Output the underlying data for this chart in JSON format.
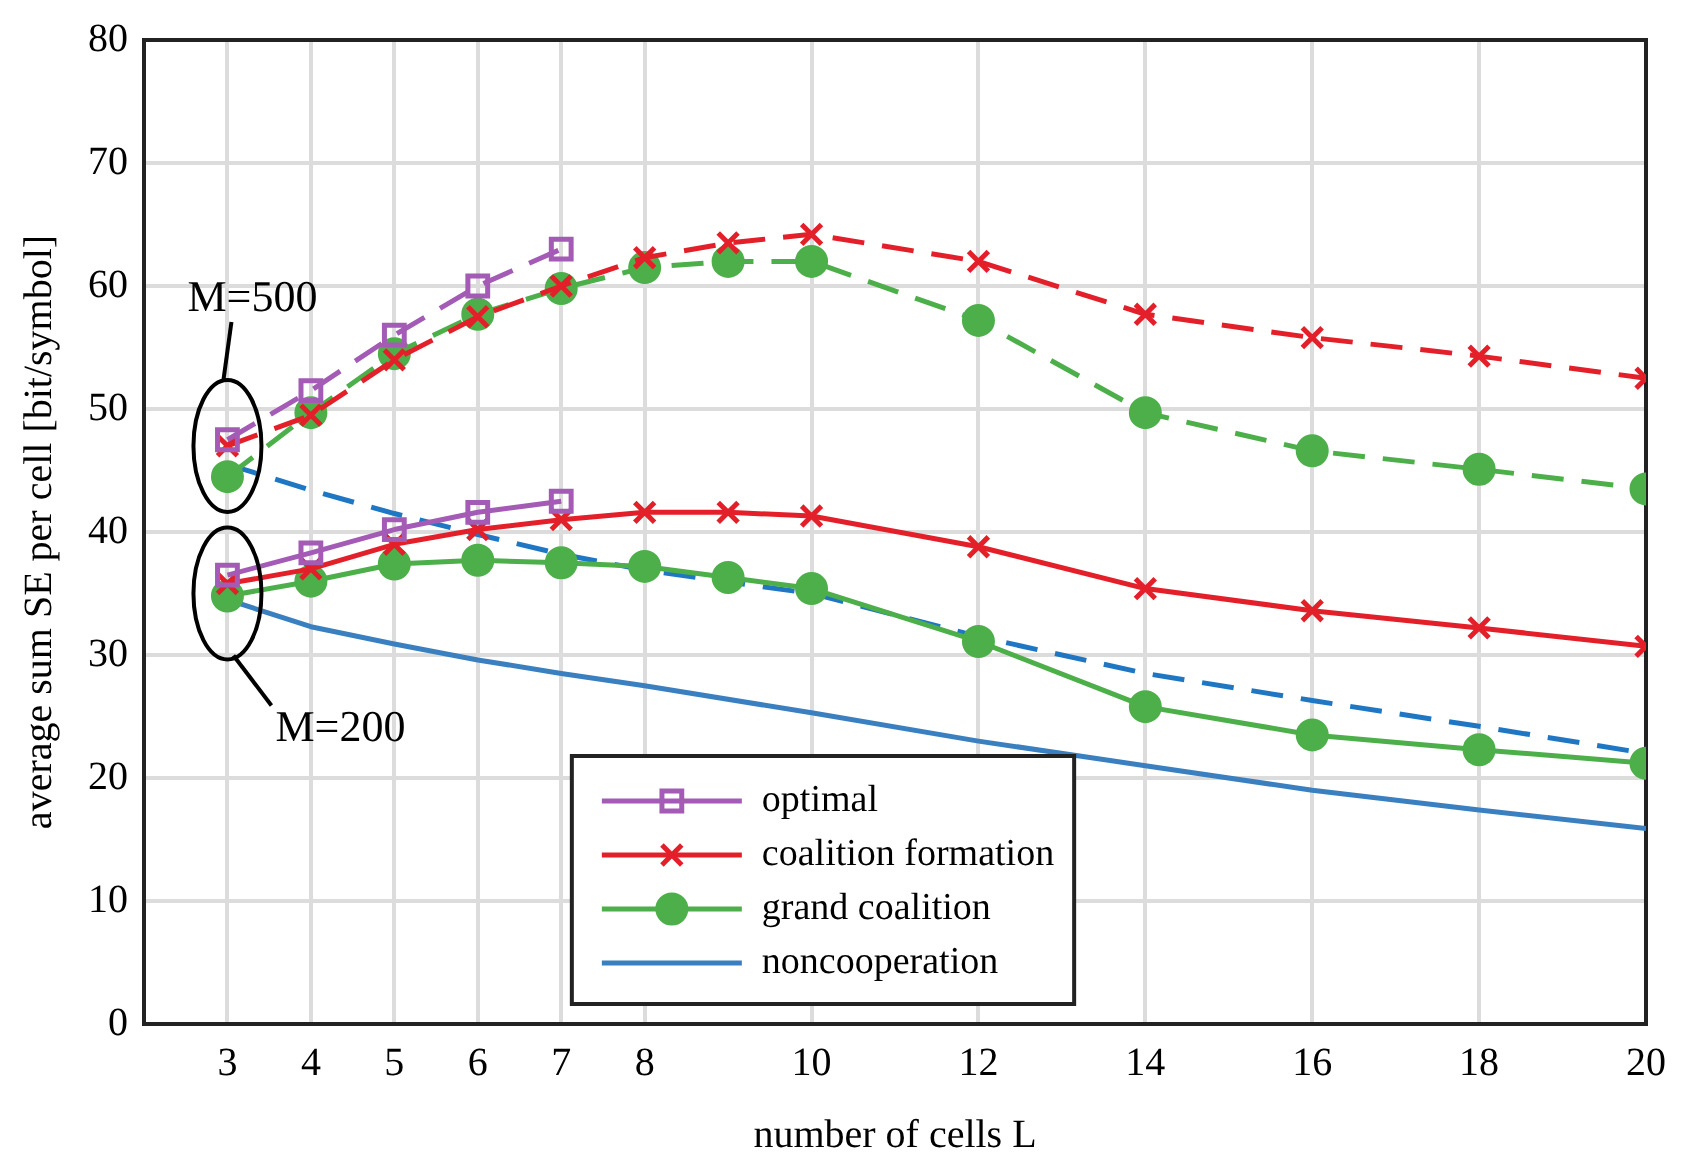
{
  "chart_data": {
    "type": "line",
    "xlabel": "number of cells L",
    "ylabel": "average sum SE per cell [bit/symbol]",
    "xlim": [
      2,
      20
    ],
    "xticks": [
      3,
      4,
      5,
      6,
      7,
      8,
      10,
      12,
      14,
      16,
      18,
      20
    ],
    "ylim": [
      0,
      80
    ],
    "yticks": [
      0,
      10,
      20,
      30,
      40,
      50,
      60,
      70,
      80
    ],
    "grid": true,
    "legend": "bottom",
    "annotations": [
      {
        "text": "M=500",
        "x": 3,
        "y": 47
      },
      {
        "text": "M=200",
        "x": 3,
        "y": 35
      }
    ],
    "series": [
      {
        "name": "optimal",
        "color": "#a35bb5",
        "marker": "square",
        "line_style": "solid",
        "x": [
          3,
          4,
          5,
          6,
          7
        ],
        "values": [
          36.5,
          38.3,
          40.2,
          41.6,
          42.5
        ]
      },
      {
        "name": "coalition formation",
        "color": "#e3202a",
        "marker": "cross",
        "line_style": "solid",
        "x": [
          3,
          4,
          5,
          6,
          7,
          8,
          9,
          10,
          12,
          14,
          16,
          18,
          20
        ],
        "values": [
          35.8,
          37,
          39,
          40.2,
          41,
          41.6,
          41.6,
          41.3,
          38.8,
          35.4,
          33.6,
          32.2,
          30.7
        ]
      },
      {
        "name": "grand coalition",
        "color": "#4daf4a",
        "marker": "circle",
        "line_style": "solid",
        "x": [
          3,
          4,
          5,
          6,
          7,
          8,
          9,
          10,
          12,
          14,
          16,
          18,
          20
        ],
        "values": [
          34.8,
          36,
          37.4,
          37.7,
          37.5,
          37.2,
          36.3,
          35.4,
          31.1,
          25.8,
          23.5,
          22.3,
          21.2
        ]
      },
      {
        "name": "noncooperation",
        "color": "#3a80c0",
        "marker": "none",
        "line_style": "solid",
        "x": [
          3,
          4,
          5,
          6,
          7,
          8,
          10,
          12,
          14,
          16,
          18,
          20
        ],
        "values": [
          34.5,
          32.3,
          30.9,
          29.6,
          28.5,
          27.5,
          25.3,
          23,
          21,
          19,
          17.4,
          15.9
        ]
      },
      {
        "color": "#a35bb5",
        "marker": "square",
        "line_style": "dashed",
        "x": [
          3,
          4,
          5,
          6,
          7
        ],
        "values": [
          47.5,
          51.5,
          56,
          60,
          63
        ]
      },
      {
        "color": "#e3202a",
        "marker": "cross",
        "line_style": "dashed",
        "x": [
          3,
          4,
          5,
          6,
          7,
          8,
          9,
          10,
          12,
          14,
          16,
          18,
          20
        ],
        "values": [
          47,
          49.5,
          54,
          57.5,
          60,
          62.3,
          63.5,
          64.2,
          62,
          57.7,
          55.8,
          54.3,
          52.5
        ]
      },
      {
        "color": "#4daf4a",
        "marker": "circle",
        "line_style": "dashed",
        "x": [
          3,
          4,
          5,
          6,
          7,
          8,
          9,
          10,
          12,
          14,
          16,
          18,
          20
        ],
        "values": [
          44.5,
          49.7,
          54.5,
          57.7,
          59.8,
          61.5,
          62,
          62,
          57.2,
          49.7,
          46.6,
          45.1,
          43.5
        ]
      },
      {
        "color": "#1f77c4",
        "marker": "none",
        "line_style": "dashed",
        "x": [
          3,
          4,
          5,
          6,
          7,
          8,
          10,
          12,
          14,
          16,
          18,
          20
        ],
        "values": [
          45.5,
          43.4,
          41.5,
          39.8,
          38.2,
          36.9,
          35,
          31.5,
          28.5,
          26.3,
          24.2,
          22
        ]
      }
    ]
  }
}
